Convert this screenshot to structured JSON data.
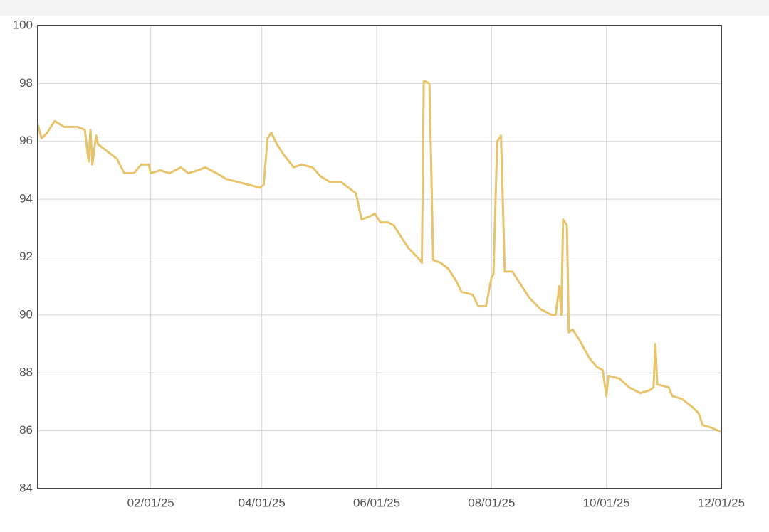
{
  "chart_data": {
    "type": "line",
    "x": [
      "12/03/24",
      "12/05/24",
      "12/08/24",
      "12/12/24",
      "12/17/24",
      "12/24/24",
      "12/28/24",
      "12/30/24",
      "12/31/24",
      "01/01/25",
      "01/03/25",
      "01/04/25",
      "01/08/25",
      "01/14/25",
      "01/18/25",
      "01/23/25",
      "01/27/25",
      "01/31/25",
      "02/01/25",
      "02/06/25",
      "02/11/25",
      "02/17/25",
      "02/21/25",
      "02/26/25",
      "03/02/25",
      "03/08/25",
      "03/13/25",
      "03/19/25",
      "03/25/25",
      "03/31/25",
      "04/02/25",
      "04/04/25",
      "04/06/25",
      "04/09/25",
      "04/13/25",
      "04/18/25",
      "04/22/25",
      "04/28/25",
      "05/02/25",
      "05/07/25",
      "05/13/25",
      "05/17/25",
      "05/21/25",
      "05/24/25",
      "05/28/25",
      "05/31/25",
      "06/03/25",
      "06/07/25",
      "06/10/25",
      "06/14/25",
      "06/18/25",
      "06/24/25",
      "06/25/25",
      "06/26/25",
      "06/29/25",
      "07/01/25",
      "07/05/25",
      "07/09/25",
      "07/13/25",
      "07/16/25",
      "07/22/25",
      "07/25/25",
      "07/29/25",
      "08/01/25",
      "08/02/25",
      "08/04/25",
      "08/06/25",
      "08/08/25",
      "08/12/25",
      "08/16/25",
      "08/21/25",
      "08/27/25",
      "09/02/25",
      "09/04/25",
      "09/06/25",
      "09/07/25",
      "09/08/25",
      "09/10/25",
      "09/11/25",
      "09/13/25",
      "09/17/25",
      "09/22/25",
      "09/26/25",
      "09/29/25",
      "10/01/25",
      "10/02/25",
      "10/08/25",
      "10/13/25",
      "10/19/25",
      "10/24/25",
      "10/26/25",
      "10/27/25",
      "10/28/25",
      "11/03/25",
      "11/05/25",
      "11/10/25",
      "11/16/25",
      "11/19/25",
      "11/21/25",
      "11/26/25",
      "12/01/25"
    ],
    "series": [
      {
        "color": "#e8c46c",
        "values": [
          96.6,
          96.1,
          96.3,
          96.7,
          96.5,
          96.5,
          96.4,
          95.3,
          96.4,
          95.2,
          96.2,
          95.9,
          95.7,
          95.4,
          94.9,
          94.9,
          95.2,
          95.2,
          94.9,
          95.0,
          94.9,
          95.1,
          94.9,
          95.0,
          95.1,
          94.9,
          94.7,
          94.6,
          94.5,
          94.4,
          94.5,
          96.1,
          96.3,
          95.9,
          95.5,
          95.1,
          95.2,
          95.1,
          94.8,
          94.6,
          94.6,
          94.4,
          94.2,
          93.3,
          93.4,
          93.5,
          93.2,
          93.2,
          93.1,
          92.7,
          92.3,
          91.9,
          91.8,
          98.1,
          98.0,
          91.9,
          91.8,
          91.6,
          91.2,
          90.8,
          90.7,
          90.3,
          90.3,
          91.3,
          91.4,
          96.0,
          96.2,
          91.5,
          91.5,
          91.1,
          90.6,
          90.2,
          90.0,
          90.0,
          91.0,
          90.0,
          93.3,
          93.1,
          89.4,
          89.5,
          89.1,
          88.5,
          88.2,
          88.1,
          87.2,
          87.9,
          87.8,
          87.5,
          87.3,
          87.4,
          87.5,
          89.0,
          87.6,
          87.5,
          87.2,
          87.1,
          86.8,
          86.6,
          86.2,
          86.1,
          85.95
        ]
      }
    ],
    "xlim": [
      "12/03/24",
      "12/01/25"
    ],
    "xticks": [
      "02/01/25",
      "04/01/25",
      "06/01/25",
      "08/01/25",
      "10/01/25",
      "12/01/25"
    ],
    "ylim": [
      84,
      100
    ],
    "yticks": [
      84,
      86,
      88,
      90,
      92,
      94,
      96,
      98,
      100
    ],
    "grid": true
  }
}
